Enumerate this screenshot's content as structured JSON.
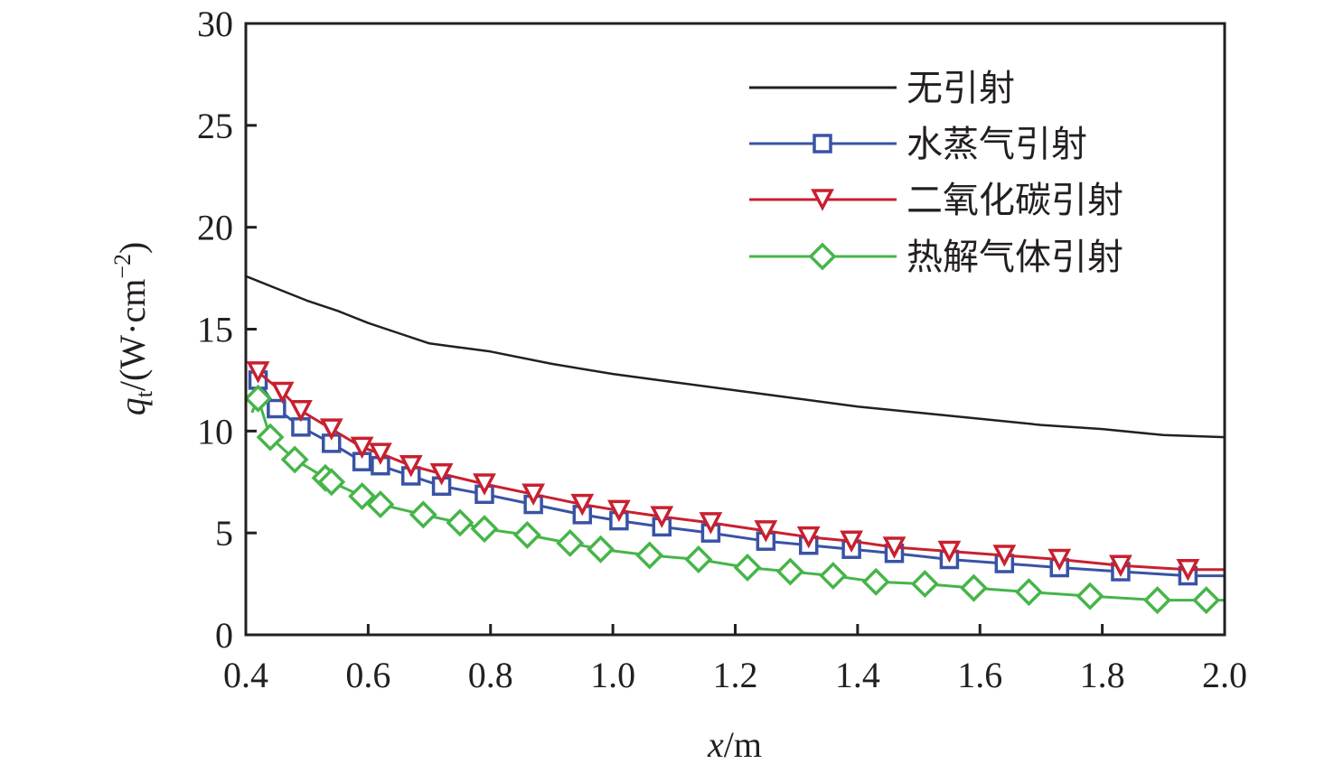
{
  "chart_data": {
    "type": "line",
    "title": "",
    "xlabel": "x/m",
    "xlabel_italic": "x",
    "xlabel_unit": "/m",
    "ylabel_q": "q",
    "ylabel_sub": "t",
    "ylabel_rest": "/(W·cm",
    "ylabel_sup": "−2",
    "ylabel_close": ")",
    "xlim": [
      0.4,
      2.0
    ],
    "ylim": [
      0,
      30
    ],
    "xticks": [
      "0.4",
      "0.6",
      "0.8",
      "1.0",
      "1.2",
      "1.4",
      "1.6",
      "1.8",
      "2.0"
    ],
    "yticks": [
      "0",
      "5",
      "10",
      "15",
      "20",
      "25",
      "30"
    ],
    "grid": false,
    "legend_position": "top-right",
    "series": [
      {
        "name": "无引射",
        "color": "#231f20",
        "marker": "none",
        "x": [
          0.4,
          0.45,
          0.5,
          0.55,
          0.6,
          0.65,
          0.7,
          0.8,
          0.9,
          1.0,
          1.1,
          1.2,
          1.3,
          1.4,
          1.5,
          1.6,
          1.7,
          1.8,
          1.9,
          2.0
        ],
        "y": [
          17.6,
          17.0,
          16.4,
          15.9,
          15.3,
          14.8,
          14.3,
          13.9,
          13.3,
          12.8,
          12.4,
          12.0,
          11.6,
          11.2,
          10.9,
          10.6,
          10.3,
          10.1,
          9.8,
          9.7
        ]
      },
      {
        "name": "水蒸气引射",
        "color": "#3953a4",
        "marker": "square",
        "x": [
          0.42,
          0.45,
          0.49,
          0.54,
          0.59,
          0.62,
          0.67,
          0.72,
          0.79,
          0.87,
          0.95,
          1.01,
          1.08,
          1.16,
          1.25,
          1.32,
          1.39,
          1.46,
          1.55,
          1.64,
          1.73,
          1.83,
          1.94,
          2.0
        ],
        "y": [
          12.5,
          11.1,
          10.2,
          9.4,
          8.5,
          8.3,
          7.8,
          7.3,
          6.9,
          6.4,
          5.9,
          5.6,
          5.3,
          5.0,
          4.6,
          4.4,
          4.2,
          4.0,
          3.7,
          3.5,
          3.3,
          3.1,
          2.9,
          2.9
        ],
        "marker_x": [
          0.42,
          0.45,
          0.49,
          0.54,
          0.59,
          0.62,
          0.67,
          0.72,
          0.79,
          0.87,
          0.95,
          1.01,
          1.08,
          1.16,
          1.25,
          1.32,
          1.39,
          1.46,
          1.55,
          1.64,
          1.73,
          1.83,
          1.94
        ]
      },
      {
        "name": "二氧化碳引射",
        "color": "#c8202f",
        "marker": "triangle-down",
        "x": [
          0.42,
          0.46,
          0.49,
          0.54,
          0.59,
          0.62,
          0.67,
          0.72,
          0.79,
          0.87,
          0.95,
          1.01,
          1.08,
          1.16,
          1.25,
          1.32,
          1.39,
          1.46,
          1.55,
          1.64,
          1.73,
          1.83,
          1.94,
          2.0
        ],
        "y": [
          12.9,
          11.9,
          11.0,
          10.1,
          9.2,
          8.9,
          8.3,
          7.9,
          7.4,
          6.9,
          6.4,
          6.1,
          5.8,
          5.5,
          5.1,
          4.8,
          4.6,
          4.3,
          4.1,
          3.9,
          3.7,
          3.4,
          3.2,
          3.2
        ],
        "marker_x": [
          0.42,
          0.46,
          0.49,
          0.54,
          0.59,
          0.62,
          0.67,
          0.72,
          0.79,
          0.87,
          0.95,
          1.01,
          1.08,
          1.16,
          1.25,
          1.32,
          1.39,
          1.46,
          1.55,
          1.64,
          1.73,
          1.83,
          1.94
        ]
      },
      {
        "name": "热解气体引射",
        "color": "#46b549",
        "marker": "diamond",
        "x": [
          0.41,
          0.42,
          0.44,
          0.48,
          0.53,
          0.54,
          0.59,
          0.62,
          0.69,
          0.75,
          0.79,
          0.86,
          0.93,
          0.98,
          1.06,
          1.14,
          1.22,
          1.29,
          1.36,
          1.43,
          1.51,
          1.59,
          1.68,
          1.78,
          1.89,
          1.97,
          2.0
        ],
        "y": [
          10.9,
          11.6,
          9.7,
          8.6,
          7.7,
          7.5,
          6.8,
          6.4,
          5.9,
          5.5,
          5.2,
          4.9,
          4.5,
          4.2,
          3.9,
          3.7,
          3.3,
          3.1,
          2.9,
          2.6,
          2.5,
          2.3,
          2.1,
          1.9,
          1.7,
          1.7,
          1.7
        ],
        "marker_x": [
          0.42,
          0.44,
          0.48,
          0.53,
          0.54,
          0.59,
          0.62,
          0.69,
          0.75,
          0.79,
          0.86,
          0.93,
          0.98,
          1.06,
          1.14,
          1.22,
          1.29,
          1.36,
          1.43,
          1.51,
          1.59,
          1.68,
          1.78,
          1.89,
          1.97
        ]
      }
    ]
  }
}
